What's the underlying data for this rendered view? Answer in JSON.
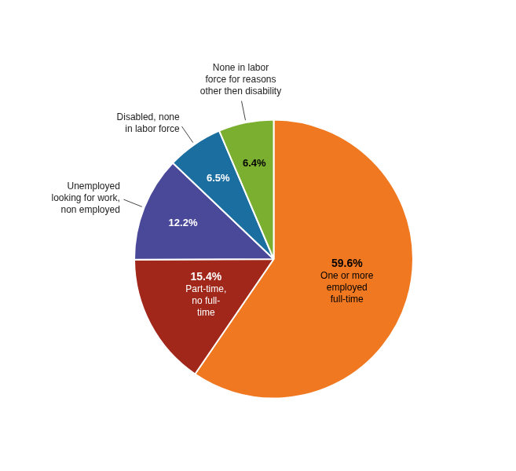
{
  "chart_data": {
    "type": "pie",
    "categories": [
      "One or more\nemployed\nfull-time",
      "Part-time,\nno full-\ntime",
      "Unemployed\nlooking for work,\nnon employed",
      "Disabled, none\nin labor force",
      "None in labor\nforce for reasons\nother then disability"
    ],
    "values": [
      59.6,
      15.4,
      12.2,
      6.5,
      6.4
    ],
    "value_labels": [
      "59.6%",
      "15.4%",
      "12.2%",
      "6.5%",
      "6.4%"
    ],
    "colors": [
      "#F07820",
      "#A0271A",
      "#4A4899",
      "#1A6EA0",
      "#7BAF30"
    ],
    "data_labels": true
  }
}
